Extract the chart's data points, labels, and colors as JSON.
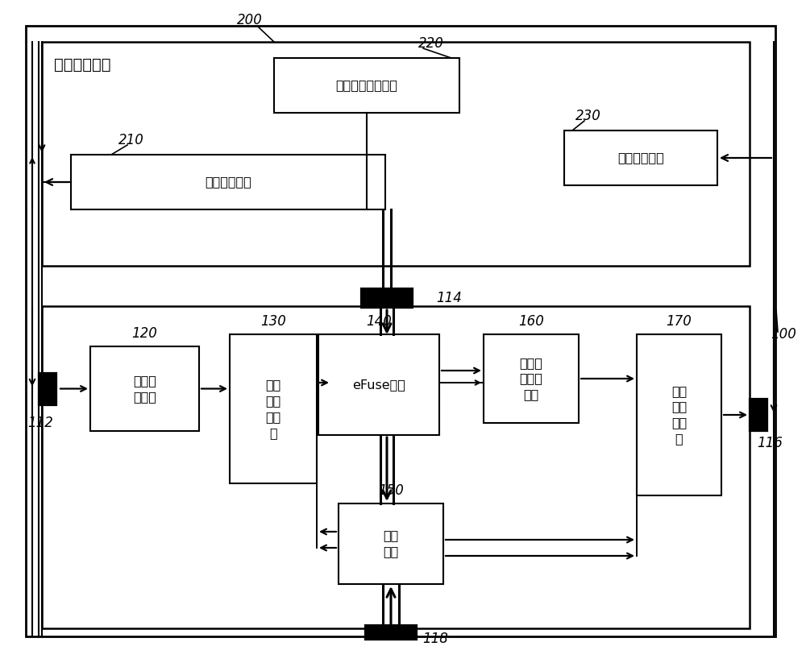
{
  "bg": "#ffffff",
  "fig_w": 10.0,
  "fig_h": 8.23,
  "text_200": "芯片烧录装置",
  "text_220": "烧录结果判断模块",
  "text_210": "信号发送模块",
  "text_230": "信号接收模块",
  "text_120": "串并转\n换单元",
  "text_130": "第一\n多路\n选择\n器",
  "text_140": "eFuse模块",
  "text_160": "烧录信\n号分析\n单元",
  "text_170": "第二\n多路\n选择\n器",
  "text_150": "控制\n单元",
  "lbl_100": "100",
  "lbl_200": "200",
  "lbl_220": "220",
  "lbl_210": "210",
  "lbl_230": "230",
  "lbl_112": "112",
  "lbl_114": "114",
  "lbl_116": "116",
  "lbl_118": "118",
  "lbl_120": "120",
  "lbl_130": "130",
  "lbl_140": "140",
  "lbl_160": "160",
  "lbl_170": "170",
  "lbl_150": "150"
}
